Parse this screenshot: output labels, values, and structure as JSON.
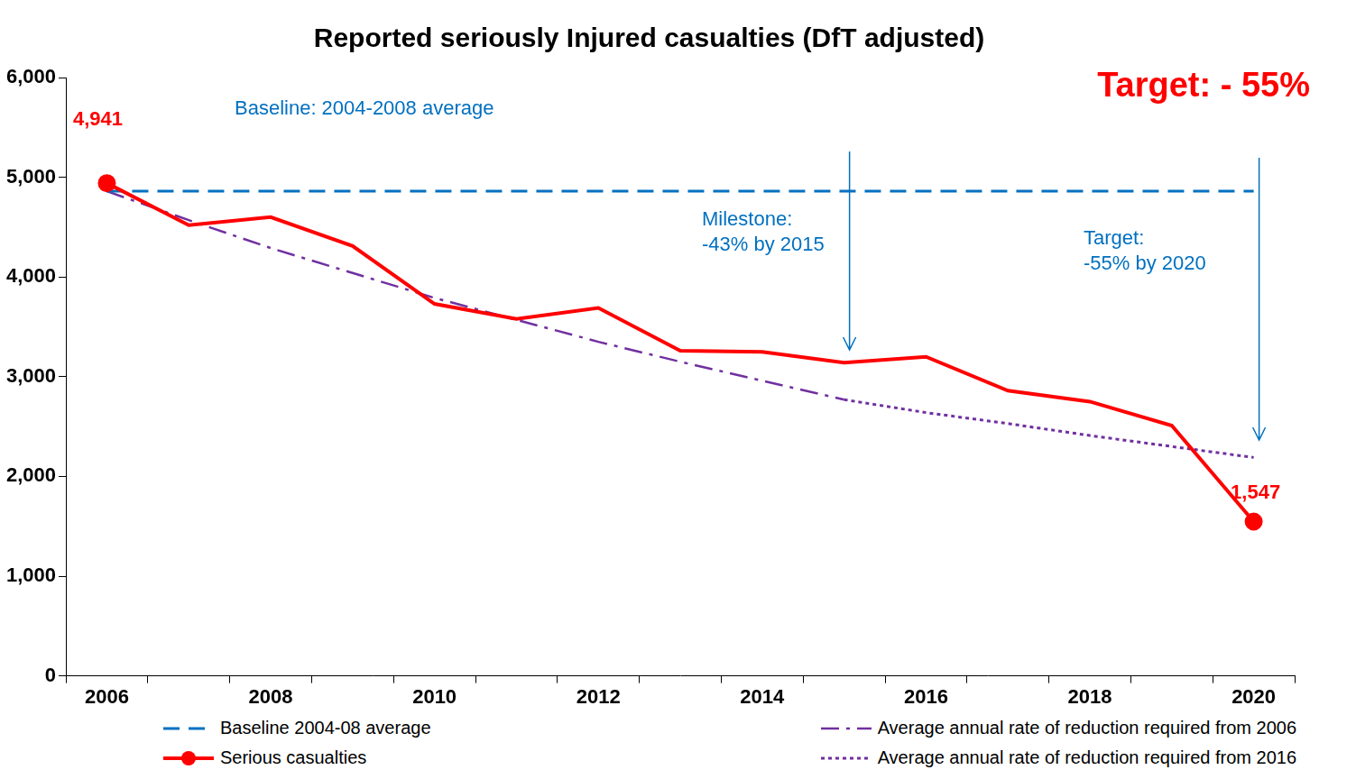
{
  "chart_data": {
    "type": "line",
    "title": "Reported seriously Injured casualties (DfT adjusted)",
    "categories": [
      "2006",
      null,
      "2008",
      null,
      "2010",
      null,
      "2012",
      null,
      "2014",
      null,
      "2016",
      null,
      "2018",
      null,
      "2020"
    ],
    "series": [
      {
        "name": "Baseline 2004-08 average",
        "color": "#0070c0",
        "line_style": "dashed",
        "values": [
          4860,
          4860,
          4860,
          4860,
          4860,
          4860,
          4860,
          4860,
          4860,
          4860,
          4860,
          4860,
          4860,
          4860,
          4860
        ]
      },
      {
        "name": "Average annual rate of reduction required from 2006",
        "color": "#7030a0",
        "line_style": "dashdot",
        "values": [
          4860,
          4570,
          4290,
          4040,
          3790,
          3570,
          3350,
          3150,
          2960,
          2770,
          null,
          null,
          null,
          null,
          null
        ]
      },
      {
        "name": "Serious casualties",
        "color": "#ff0000",
        "line_style": "solid",
        "marker": "circle",
        "values": [
          4941,
          4520,
          4600,
          4310,
          3730,
          3580,
          3690,
          3260,
          3250,
          3140,
          3200,
          2860,
          2750,
          2510,
          1547
        ],
        "value_labels": [
          "4,941",
          null,
          null,
          null,
          null,
          null,
          null,
          null,
          null,
          null,
          null,
          null,
          null,
          null,
          "1,547"
        ]
      },
      {
        "name": "Average annual rate of reduction required from 2016",
        "color": "#7030a0",
        "line_style": "dotted",
        "values": [
          null,
          null,
          null,
          null,
          null,
          null,
          null,
          null,
          null,
          2770,
          2640,
          2530,
          2410,
          2300,
          2190
        ]
      }
    ],
    "ylim": [
      0,
      6000
    ],
    "yticks": [
      0,
      {
        "value": 1000,
        "label": "1,000"
      },
      {
        "value": 2000,
        "label": "2,000"
      },
      {
        "value": 3000,
        "label": "3,000"
      },
      {
        "value": 4000,
        "label": "4,000"
      },
      {
        "value": 5000,
        "label": "5,000"
      },
      {
        "value": 6000,
        "label": "6,000"
      }
    ],
    "grid": false,
    "legend": "bottom",
    "annotations": [
      "Baseline: 2004-2008 average",
      "Milestone:\n-43% by 2015",
      "Target:\n-55% by 2020",
      "Target: - 55%"
    ]
  }
}
